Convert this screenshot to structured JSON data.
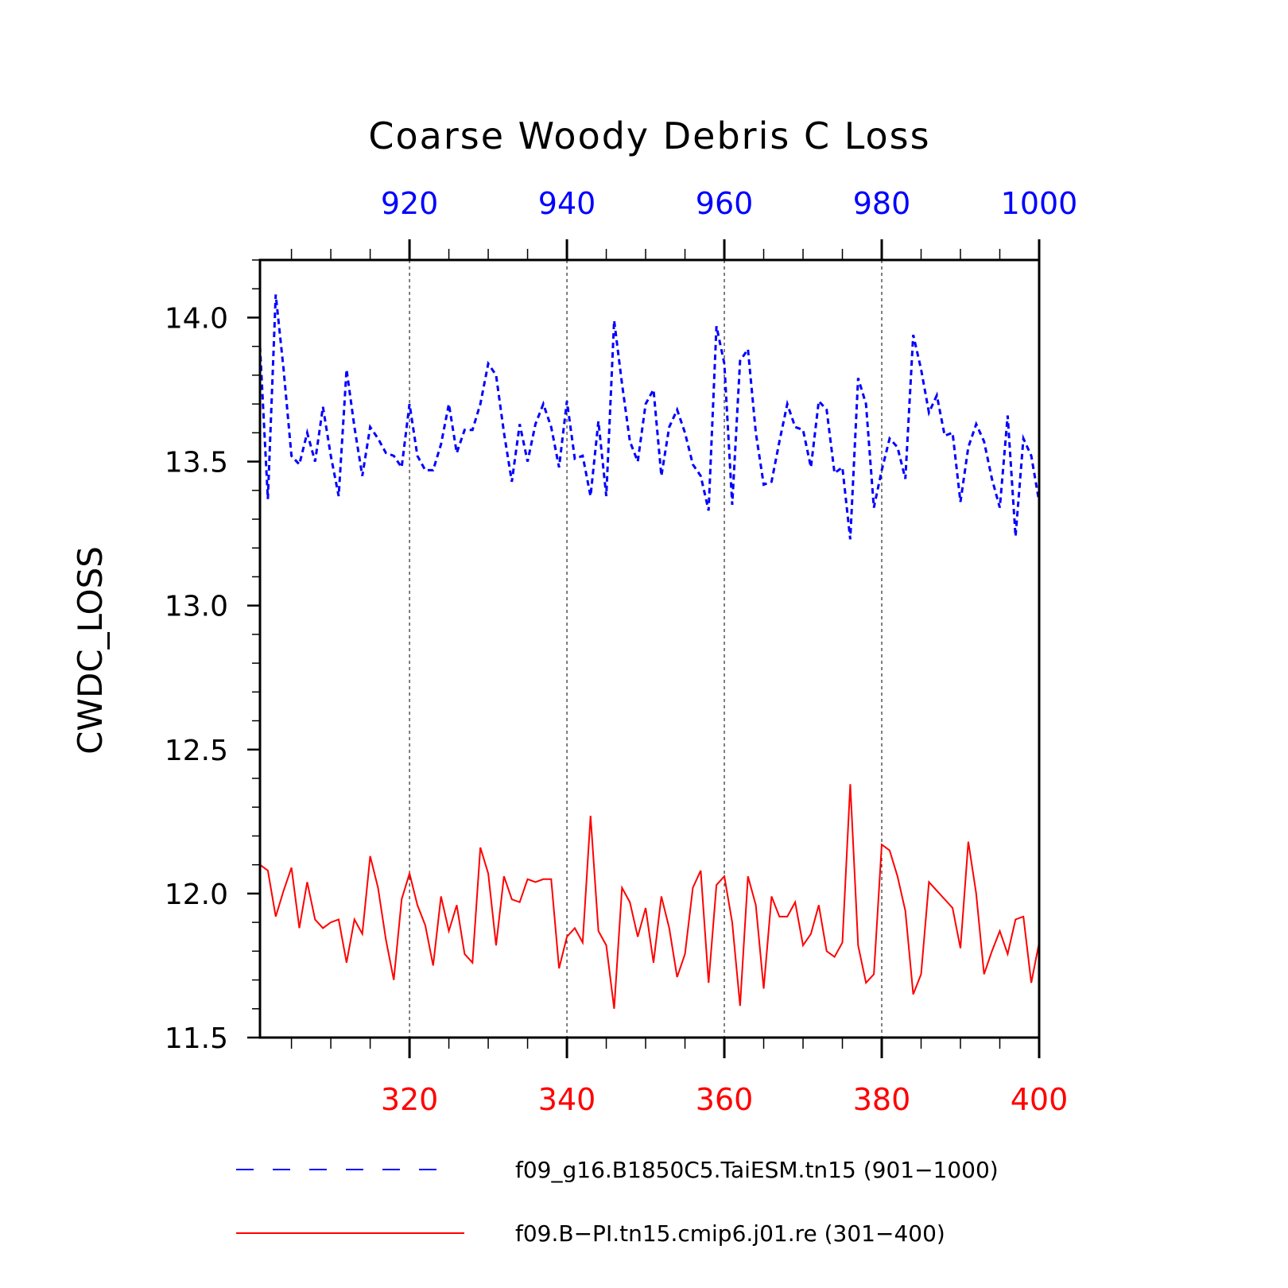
{
  "colors": {
    "top_series": "#0000ff",
    "bottom_series": "#ff0000",
    "axis": "#000000"
  },
  "chart_data": {
    "type": "line",
    "title": "Coarse Woody Debris C Loss",
    "ylabel": "CWDC_LOSS",
    "ylim": [
      11.5,
      14.2
    ],
    "yticks": [
      "11.5",
      "12.0",
      "12.5",
      "13.0",
      "13.5",
      "14.0"
    ],
    "top_axis": {
      "xlim": [
        901,
        1000
      ],
      "ticks": [
        "920",
        "940",
        "960",
        "980",
        "1000"
      ]
    },
    "bottom_axis": {
      "xlim": [
        301,
        400
      ],
      "ticks": [
        "320",
        "340",
        "360",
        "380",
        "400"
      ]
    },
    "grid": "vertical dashed lines at major ticks",
    "legend_position": "bottom",
    "series": [
      {
        "name": "f09_g16.B1850C5.TaiESM.tn15 (901−1000)",
        "axis": "top",
        "style": "dashed",
        "x_start": 901,
        "values": [
          13.9,
          13.37,
          14.08,
          13.82,
          13.52,
          13.49,
          13.6,
          13.5,
          13.69,
          13.52,
          13.38,
          13.82,
          13.62,
          13.45,
          13.62,
          13.58,
          13.53,
          13.52,
          13.48,
          13.7,
          13.52,
          13.47,
          13.47,
          13.56,
          13.7,
          13.53,
          13.61,
          13.61,
          13.7,
          13.84,
          13.8,
          13.6,
          13.43,
          13.63,
          13.5,
          13.63,
          13.7,
          13.62,
          13.48,
          13.71,
          13.51,
          13.52,
          13.38,
          13.64,
          13.38,
          13.99,
          13.77,
          13.57,
          13.5,
          13.7,
          13.75,
          13.45,
          13.62,
          13.68,
          13.6,
          13.49,
          13.45,
          13.33,
          13.97,
          13.84,
          13.35,
          13.85,
          13.89,
          13.6,
          13.42,
          13.43,
          13.57,
          13.7,
          13.62,
          13.61,
          13.48,
          13.71,
          13.68,
          13.46,
          13.48,
          13.23,
          13.79,
          13.7,
          13.34,
          13.47,
          13.58,
          13.55,
          13.44,
          13.94,
          13.82,
          13.67,
          13.73,
          13.59,
          13.6,
          13.36,
          13.55,
          13.63,
          13.57,
          13.44,
          13.34,
          13.66,
          13.24,
          13.58,
          13.52,
          13.36
        ]
      },
      {
        "name": "f09.B−PI.tn15.cmip6.j01.re (301−400)",
        "axis": "bottom",
        "style": "solid",
        "x_start": 301,
        "values": [
          12.1,
          12.08,
          11.92,
          12.01,
          12.09,
          11.88,
          12.04,
          11.91,
          11.88,
          11.9,
          11.91,
          11.76,
          11.91,
          11.86,
          12.13,
          12.02,
          11.84,
          11.7,
          11.98,
          12.07,
          11.96,
          11.89,
          11.75,
          11.99,
          11.87,
          11.96,
          11.79,
          11.76,
          12.16,
          12.07,
          11.82,
          12.06,
          11.98,
          11.97,
          12.05,
          12.04,
          12.05,
          12.05,
          11.74,
          11.85,
          11.88,
          11.83,
          12.27,
          11.87,
          11.82,
          11.6,
          12.02,
          11.97,
          11.85,
          11.95,
          11.76,
          11.99,
          11.88,
          11.71,
          11.79,
          12.02,
          12.08,
          11.69,
          12.03,
          12.06,
          11.9,
          11.61,
          12.06,
          11.96,
          11.67,
          11.99,
          11.92,
          11.92,
          11.97,
          11.82,
          11.86,
          11.96,
          11.8,
          11.78,
          11.83,
          12.38,
          11.82,
          11.69,
          11.72,
          12.17,
          12.15,
          12.06,
          11.94,
          11.65,
          11.72,
          12.04,
          12.01,
          11.98,
          11.95,
          11.81,
          12.18,
          12.0,
          11.72,
          11.8,
          11.87,
          11.79,
          11.91,
          11.92,
          11.69,
          11.83
        ]
      }
    ]
  }
}
